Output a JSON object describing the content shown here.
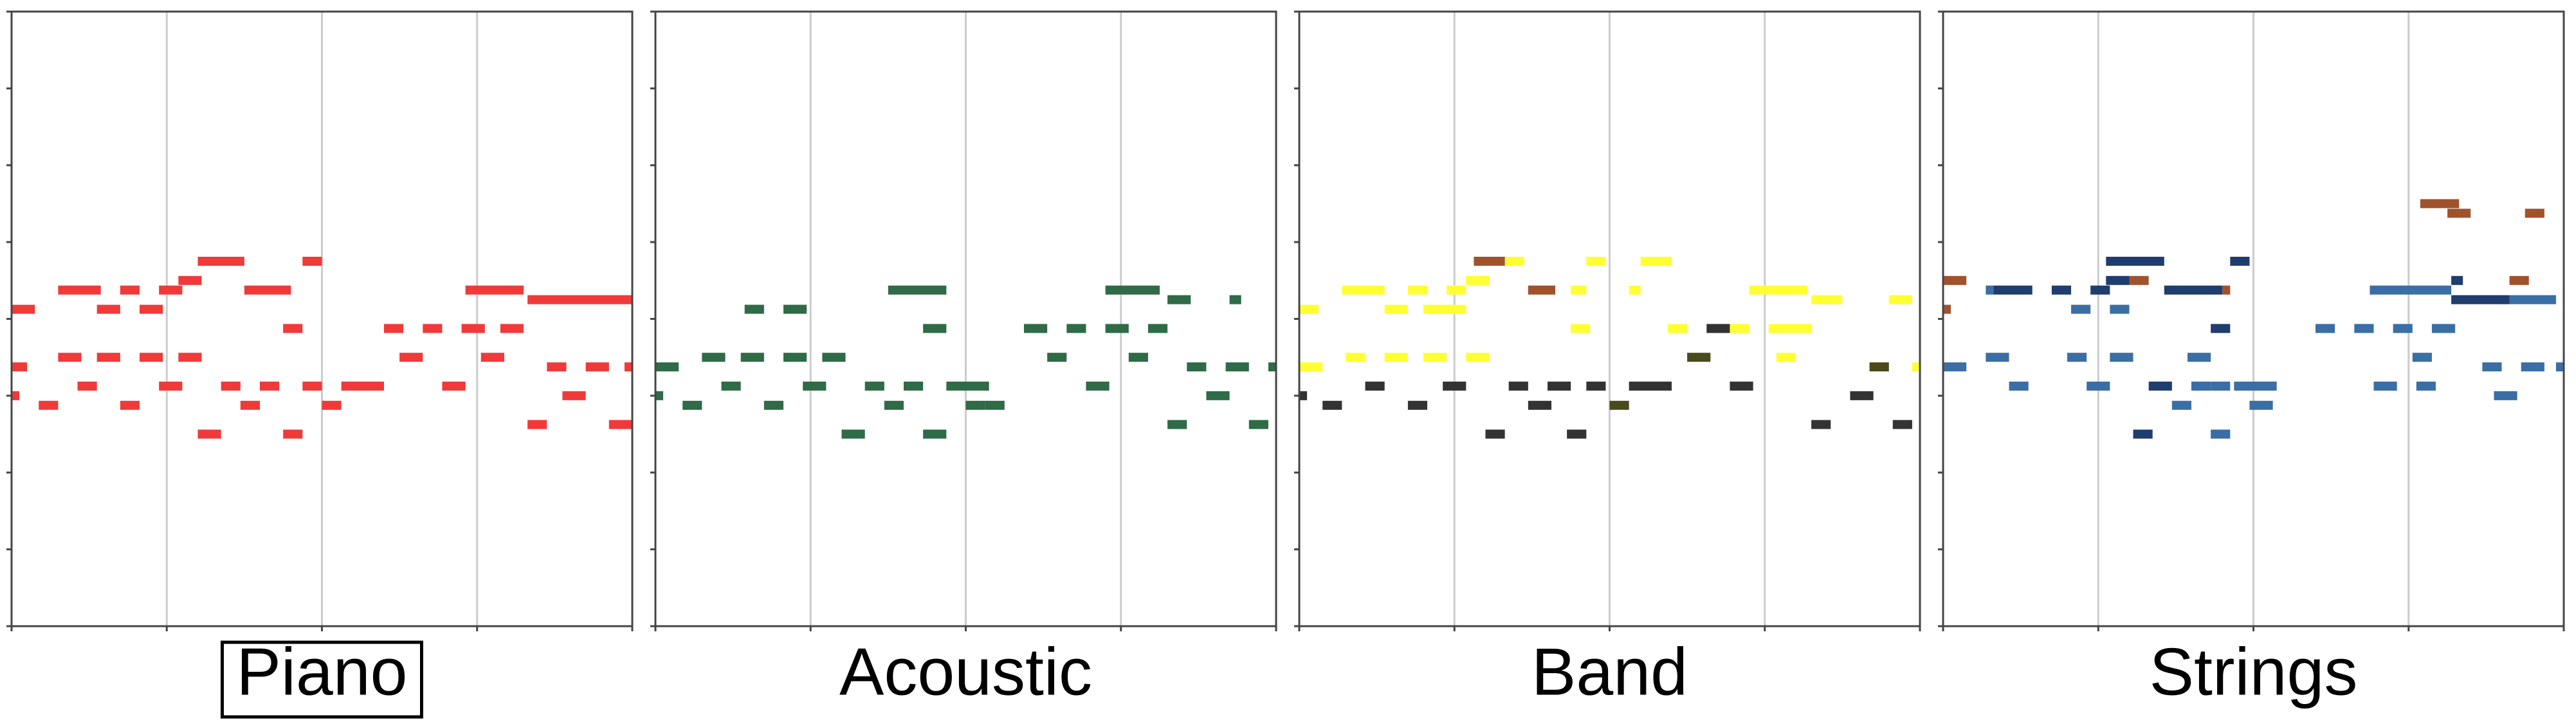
{
  "xlim": [
    0,
    16
  ],
  "ylim": [
    0,
    64
  ],
  "xticks": [
    0,
    4,
    8,
    12,
    16
  ],
  "yticks": [
    0,
    8,
    16,
    24,
    32,
    40,
    48,
    56,
    64
  ],
  "grid": true,
  "selected_panel": 0,
  "panels": [
    {
      "label": "Piano",
      "series": [
        {
          "color": "#f03a3a",
          "notes": [
            [
              4.8,
              6.0,
              38
            ],
            [
              7.5,
              8.0,
              38
            ],
            [
              4.3,
              4.9,
              36
            ],
            [
              1.2,
              2.3,
              35
            ],
            [
              2.8,
              3.3,
              35
            ],
            [
              3.8,
              4.4,
              35
            ],
            [
              6.0,
              7.2,
              35
            ],
            [
              11.7,
              13.2,
              35
            ],
            [
              13.3,
              16,
              34
            ],
            [
              0,
              0.6,
              33
            ],
            [
              2.2,
              2.8,
              33
            ],
            [
              3.3,
              3.9,
              33
            ],
            [
              7.0,
              7.5,
              31
            ],
            [
              9.6,
              10.1,
              31
            ],
            [
              10.6,
              11.1,
              31
            ],
            [
              11.6,
              12.2,
              31
            ],
            [
              12.6,
              13.2,
              31
            ],
            [
              1.2,
              1.8,
              28
            ],
            [
              2.2,
              2.8,
              28
            ],
            [
              3.3,
              3.9,
              28
            ],
            [
              4.3,
              4.9,
              28
            ],
            [
              10.0,
              10.6,
              28
            ],
            [
              12.1,
              12.7,
              28
            ],
            [
              0,
              0.4,
              27
            ],
            [
              13.8,
              14.3,
              27
            ],
            [
              14.8,
              15.4,
              27
            ],
            [
              15.8,
              16,
              27
            ],
            [
              1.7,
              2.2,
              25
            ],
            [
              3.8,
              4.4,
              25
            ],
            [
              5.4,
              5.9,
              25
            ],
            [
              6.4,
              6.9,
              25
            ],
            [
              7.5,
              8.0,
              25
            ],
            [
              8.5,
              9.6,
              25
            ],
            [
              11.1,
              11.7,
              25
            ],
            [
              0,
              0.2,
              24
            ],
            [
              14.2,
              14.8,
              24
            ],
            [
              0.7,
              1.2,
              23
            ],
            [
              2.8,
              3.3,
              23
            ],
            [
              5.9,
              6.4,
              23
            ],
            [
              8.0,
              8.5,
              23
            ],
            [
              13.3,
              13.8,
              21
            ],
            [
              15.4,
              16,
              21
            ],
            [
              4.8,
              5.4,
              20
            ],
            [
              7.0,
              7.5,
              20
            ]
          ]
        }
      ]
    },
    {
      "label": "Acoustic",
      "series": [
        {
          "color": "#2e6b46",
          "notes": [
            [
              6.0,
              7.5,
              35
            ],
            [
              11.6,
              13.0,
              35
            ],
            [
              13.2,
              13.8,
              34
            ],
            [
              14.8,
              15.1,
              34
            ],
            [
              2.3,
              2.8,
              33
            ],
            [
              3.3,
              3.9,
              33
            ],
            [
              6.9,
              7.5,
              31
            ],
            [
              9.5,
              10.1,
              31
            ],
            [
              10.6,
              11.1,
              31
            ],
            [
              11.6,
              12.2,
              31
            ],
            [
              12.7,
              13.2,
              31
            ],
            [
              1.2,
              1.8,
              28
            ],
            [
              2.2,
              2.8,
              28
            ],
            [
              3.3,
              3.9,
              28
            ],
            [
              4.3,
              4.9,
              28
            ],
            [
              10.1,
              10.6,
              28
            ],
            [
              12.2,
              12.7,
              28
            ],
            [
              0,
              0.6,
              27
            ],
            [
              13.7,
              14.2,
              27
            ],
            [
              14.7,
              15.3,
              27
            ],
            [
              15.8,
              16,
              27
            ],
            [
              1.7,
              2.2,
              25
            ],
            [
              3.8,
              4.4,
              25
            ],
            [
              5.4,
              5.9,
              25
            ],
            [
              6.4,
              6.9,
              25
            ],
            [
              7.5,
              8.6,
              25
            ],
            [
              11.1,
              11.7,
              25
            ],
            [
              0,
              0.2,
              24
            ],
            [
              14.2,
              14.8,
              24
            ],
            [
              0.7,
              1.2,
              23
            ],
            [
              2.8,
              3.3,
              23
            ],
            [
              5.9,
              6.4,
              23
            ],
            [
              8.0,
              8.5,
              23
            ],
            [
              8.5,
              9.0,
              23
            ],
            [
              13.2,
              13.7,
              21
            ],
            [
              15.3,
              15.8,
              21
            ],
            [
              4.8,
              5.4,
              20
            ],
            [
              6.9,
              7.5,
              20
            ]
          ]
        }
      ]
    },
    {
      "label": "Band",
      "series": [
        {
          "color": "#ffff33",
          "notes": [
            [
              5.3,
              5.8,
              38
            ],
            [
              7.4,
              7.9,
              38
            ],
            [
              8.8,
              9.6,
              38
            ],
            [
              4.3,
              4.9,
              36
            ],
            [
              1.1,
              2.2,
              35
            ],
            [
              2.8,
              3.3,
              35
            ],
            [
              3.8,
              4.3,
              35
            ],
            [
              7.0,
              7.4,
              35
            ],
            [
              8.5,
              8.8,
              35
            ],
            [
              11.6,
              13.1,
              35
            ],
            [
              13.2,
              14.0,
              34
            ],
            [
              15.2,
              15.8,
              34
            ],
            [
              0,
              0.5,
              33
            ],
            [
              2.2,
              2.8,
              33
            ],
            [
              3.2,
              4.3,
              33
            ],
            [
              7.0,
              7.5,
              31
            ],
            [
              9.5,
              10.0,
              31
            ],
            [
              11.1,
              11.6,
              31
            ],
            [
              12.1,
              12.7,
              31
            ],
            [
              12.7,
              13.2,
              31
            ],
            [
              1.2,
              1.7,
              28
            ],
            [
              2.2,
              2.8,
              28
            ],
            [
              3.2,
              3.8,
              28
            ],
            [
              4.3,
              4.9,
              28
            ],
            [
              12.3,
              12.8,
              28
            ],
            [
              0,
              0.6,
              27
            ],
            [
              15.8,
              16,
              27
            ]
          ]
        },
        {
          "color": "#a0522d",
          "notes": [
            [
              4.5,
              5.3,
              38
            ],
            [
              5.9,
              6.6,
              35
            ]
          ]
        },
        {
          "color": "#333333",
          "notes": [
            [
              10.5,
              11.1,
              31
            ],
            [
              1.7,
              2.2,
              25
            ],
            [
              3.7,
              4.3,
              25
            ],
            [
              5.4,
              5.9,
              25
            ],
            [
              6.4,
              7.0,
              25
            ],
            [
              7.4,
              7.9,
              25
            ],
            [
              8.5,
              9.6,
              25
            ],
            [
              11.1,
              11.7,
              25
            ],
            [
              0,
              0.2,
              24
            ],
            [
              14.2,
              14.8,
              24
            ],
            [
              0.6,
              1.1,
              23
            ],
            [
              2.8,
              3.3,
              23
            ],
            [
              5.9,
              6.5,
              23
            ],
            [
              13.2,
              13.7,
              21
            ],
            [
              15.3,
              15.8,
              21
            ],
            [
              4.8,
              5.3,
              20
            ],
            [
              6.9,
              7.4,
              20
            ]
          ]
        },
        {
          "color": "#4a4a1a",
          "notes": [
            [
              10.0,
              10.6,
              28
            ],
            [
              14.7,
              15.2,
              27
            ],
            [
              8.0,
              8.5,
              23
            ]
          ]
        }
      ]
    },
    {
      "label": "Strings",
      "series": [
        {
          "color": "#3a6ea5",
          "notes": [
            [
              1.1,
              1.3,
              35
            ],
            [
              11.0,
              13.1,
              35
            ],
            [
              14.6,
              15.8,
              34
            ],
            [
              3.3,
              3.8,
              33
            ],
            [
              4.3,
              4.8,
              33
            ],
            [
              9.6,
              10.1,
              31
            ],
            [
              10.6,
              11.1,
              31
            ],
            [
              11.6,
              12.1,
              31
            ],
            [
              12.6,
              13.2,
              31
            ],
            [
              1.1,
              1.7,
              28
            ],
            [
              3.2,
              3.7,
              28
            ],
            [
              4.3,
              4.9,
              28
            ],
            [
              6.3,
              6.9,
              28
            ],
            [
              12.1,
              12.6,
              28
            ],
            [
              0,
              0.6,
              27
            ],
            [
              13.9,
              14.4,
              27
            ],
            [
              14.9,
              15.5,
              27
            ],
            [
              15.8,
              16,
              27
            ],
            [
              1.7,
              2.2,
              25
            ],
            [
              3.7,
              4.3,
              25
            ],
            [
              6.4,
              6.9,
              25
            ],
            [
              6.9,
              7.4,
              25
            ],
            [
              7.5,
              8.6,
              25
            ],
            [
              11.1,
              11.7,
              25
            ],
            [
              12.2,
              12.7,
              25
            ],
            [
              14.2,
              14.8,
              24
            ],
            [
              5.9,
              6.4,
              23
            ],
            [
              7.9,
              8.5,
              23
            ],
            [
              6.9,
              7.4,
              20
            ]
          ]
        },
        {
          "color": "#1f3d6e",
          "notes": [
            [
              4.2,
              5.7,
              38
            ],
            [
              7.4,
              7.9,
              38
            ],
            [
              4.2,
              4.8,
              36
            ],
            [
              13.1,
              13.4,
              36
            ],
            [
              1.3,
              2.3,
              35
            ],
            [
              2.8,
              3.3,
              35
            ],
            [
              3.8,
              4.3,
              35
            ],
            [
              5.7,
              7.2,
              35
            ],
            [
              13.1,
              14.6,
              34
            ],
            [
              6.9,
              7.4,
              31
            ],
            [
              5.3,
              5.9,
              25
            ],
            [
              4.9,
              5.4,
              20
            ]
          ]
        },
        {
          "color": "#a0522d",
          "notes": [
            [
              12.3,
              13.3,
              44
            ],
            [
              13.0,
              13.6,
              43
            ],
            [
              15.0,
              15.5,
              43
            ],
            [
              0,
              0.6,
              36
            ],
            [
              4.8,
              5.3,
              36
            ],
            [
              14.6,
              15.1,
              36
            ],
            [
              7.2,
              7.4,
              35
            ],
            [
              0,
              0.2,
              33
            ]
          ]
        }
      ]
    }
  ]
}
